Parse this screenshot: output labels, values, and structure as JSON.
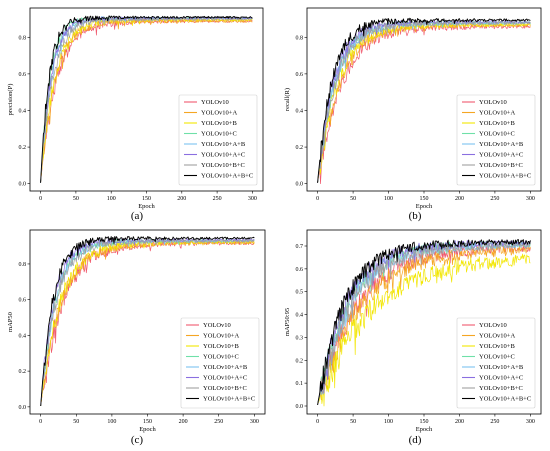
{
  "chart_data": [
    {
      "type": "line",
      "panel_label": "(a)",
      "xlabel": "Epoch",
      "ylabel": "precision(P)",
      "xlim": [
        -15,
        315
      ],
      "ylim": [
        -0.04,
        0.96
      ],
      "xticks": [
        0,
        50,
        100,
        150,
        200,
        250,
        300
      ],
      "yticks": [
        0.0,
        0.2,
        0.4,
        0.6,
        0.8
      ],
      "grid": false,
      "legend_position": "lower-right",
      "final_value_estimate": 0.91,
      "series": [
        {
          "name": "YOLOv10",
          "color": "#f05a6e",
          "final": 0.89,
          "tau": 22
        },
        {
          "name": "YOLOv10+A",
          "color": "#f5a623",
          "final": 0.89,
          "tau": 20
        },
        {
          "name": "YOLOv10+B",
          "color": "#f2e600",
          "final": 0.895,
          "tau": 19
        },
        {
          "name": "YOLOv10+C",
          "color": "#6fe0a8",
          "final": 0.905,
          "tau": 13
        },
        {
          "name": "YOLOv10+A+B",
          "color": "#7cc4f0",
          "final": 0.905,
          "tau": 15
        },
        {
          "name": "YOLOv10+A+C",
          "color": "#8a6fe0",
          "final": 0.905,
          "tau": 14
        },
        {
          "name": "YOLOv10+B+C",
          "color": "#a0a0a0",
          "final": 0.9,
          "tau": 16
        },
        {
          "name": "YOLOv10+A+B+C",
          "color": "#000000",
          "final": 0.91,
          "tau": 12
        }
      ]
    },
    {
      "type": "line",
      "panel_label": "(b)",
      "xlabel": "Epoch",
      "ylabel": "recall(R)",
      "xlim": [
        -15,
        315
      ],
      "ylim": [
        -0.04,
        0.96
      ],
      "xticks": [
        0,
        50,
        100,
        150,
        200,
        250,
        300
      ],
      "yticks": [
        0.0,
        0.2,
        0.4,
        0.6,
        0.8
      ],
      "grid": false,
      "legend_position": "lower-right",
      "series": [
        {
          "name": "YOLOv10",
          "color": "#f05a6e",
          "final": 0.86,
          "tau": 32
        },
        {
          "name": "YOLOv10+A",
          "color": "#f5a623",
          "final": 0.87,
          "tau": 30
        },
        {
          "name": "YOLOv10+B",
          "color": "#f2e600",
          "final": 0.87,
          "tau": 28
        },
        {
          "name": "YOLOv10+C",
          "color": "#6fe0a8",
          "final": 0.88,
          "tau": 24
        },
        {
          "name": "YOLOv10+A+B",
          "color": "#7cc4f0",
          "final": 0.88,
          "tau": 24
        },
        {
          "name": "YOLOv10+A+C",
          "color": "#8a6fe0",
          "final": 0.885,
          "tau": 22
        },
        {
          "name": "YOLOv10+B+C",
          "color": "#a0a0a0",
          "final": 0.88,
          "tau": 25
        },
        {
          "name": "YOLOv10+A+B+C",
          "color": "#000000",
          "final": 0.895,
          "tau": 20
        }
      ]
    },
    {
      "type": "line",
      "panel_label": "(c)",
      "xlabel": "Epoch",
      "ylabel": "mAP50",
      "xlim": [
        -15,
        315
      ],
      "ylim": [
        -0.04,
        0.99
      ],
      "xticks": [
        0,
        50,
        100,
        150,
        200,
        250,
        300
      ],
      "yticks": [
        0.0,
        0.2,
        0.4,
        0.6,
        0.8
      ],
      "grid": false,
      "legend_position": "lower-right",
      "series": [
        {
          "name": "YOLOv10",
          "color": "#f05a6e",
          "final": 0.92,
          "tau": 30
        },
        {
          "name": "YOLOv10+A",
          "color": "#f5a623",
          "final": 0.92,
          "tau": 28
        },
        {
          "name": "YOLOv10+B",
          "color": "#f2e600",
          "final": 0.925,
          "tau": 27
        },
        {
          "name": "YOLOv10+C",
          "color": "#6fe0a8",
          "final": 0.93,
          "tau": 20
        },
        {
          "name": "YOLOv10+A+B",
          "color": "#7cc4f0",
          "final": 0.93,
          "tau": 20
        },
        {
          "name": "YOLOv10+A+C",
          "color": "#8a6fe0",
          "final": 0.935,
          "tau": 18
        },
        {
          "name": "YOLOv10+B+C",
          "color": "#a0a0a0",
          "final": 0.93,
          "tau": 21
        },
        {
          "name": "YOLOv10+A+B+C",
          "color": "#000000",
          "final": 0.945,
          "tau": 17
        }
      ]
    },
    {
      "type": "line",
      "panel_label": "(d)",
      "xlabel": "Epoch",
      "ylabel": "mAP50:95",
      "xlim": [
        -15,
        315
      ],
      "ylim": [
        -0.035,
        0.77
      ],
      "xticks": [
        0,
        50,
        100,
        150,
        200,
        250,
        300
      ],
      "yticks": [
        0.0,
        0.1,
        0.2,
        0.3,
        0.4,
        0.5,
        0.6,
        0.7
      ],
      "grid": false,
      "legend_position": "lower-right",
      "series": [
        {
          "name": "YOLOv10",
          "color": "#f05a6e",
          "final": 0.7,
          "tau": 55
        },
        {
          "name": "YOLOv10+A",
          "color": "#f5a623",
          "final": 0.69,
          "tau": 58
        },
        {
          "name": "YOLOv10+B",
          "color": "#f2e600",
          "final": 0.655,
          "tau": 70
        },
        {
          "name": "YOLOv10+C",
          "color": "#6fe0a8",
          "final": 0.71,
          "tau": 42
        },
        {
          "name": "YOLOv10+A+B",
          "color": "#7cc4f0",
          "final": 0.71,
          "tau": 45
        },
        {
          "name": "YOLOv10+A+C",
          "color": "#8a6fe0",
          "final": 0.715,
          "tau": 40
        },
        {
          "name": "YOLOv10+B+C",
          "color": "#a0a0a0",
          "final": 0.705,
          "tau": 46
        },
        {
          "name": "YOLOv10+A+B+C",
          "color": "#000000",
          "final": 0.72,
          "tau": 38
        }
      ]
    }
  ]
}
